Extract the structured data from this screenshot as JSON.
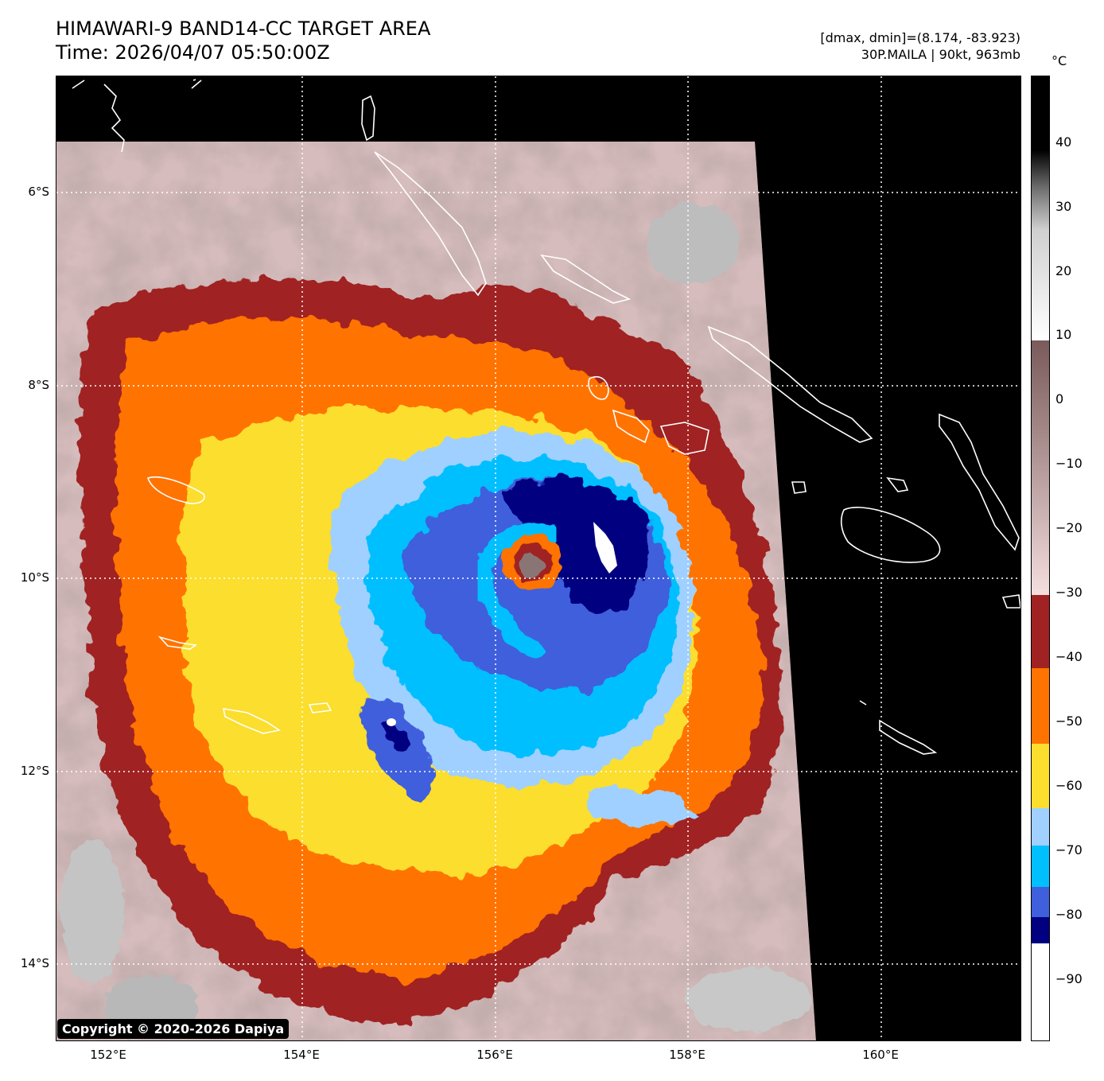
{
  "header": {
    "title_line1": "HIMAWARI-9 BAND14-CC TARGET AREA",
    "title_line2": "Time: 2026/04/07 05:50:00Z",
    "info_line1": "[dmax, dmin]=(8.174, -83.923)",
    "info_line2": "30P.MAILA | 90kt, 963mb"
  },
  "map": {
    "lat_labels": [
      "6°S",
      "8°S",
      "10°S",
      "12°S",
      "14°S"
    ],
    "lon_labels": [
      "152°E",
      "154°E",
      "156°E",
      "158°E",
      "160°E"
    ],
    "copyright": "Copyright © 2020-2026 Dapiya"
  },
  "colorbar": {
    "unit": "°C",
    "ticks": [
      "40",
      "30",
      "20",
      "10",
      "0",
      "−10",
      "−20",
      "−30",
      "−40",
      "−50",
      "−60",
      "−70",
      "−80",
      "−90"
    ],
    "segments": [
      {
        "range": "-90 to -85",
        "color": "#000080"
      },
      {
        "range": "-85 to -80",
        "color": "#3f5fdc"
      },
      {
        "range": "-80 to -70",
        "color": "#00bfff"
      },
      {
        "range": "-70 to -60",
        "color": "#a0d0ff"
      },
      {
        "range": "-60 to -50",
        "color": "#fbde2e"
      },
      {
        "range": "-50 to -40",
        "color": "#ff7300"
      },
      {
        "range": "-40 to -30",
        "color": "#a02222"
      }
    ]
  }
}
